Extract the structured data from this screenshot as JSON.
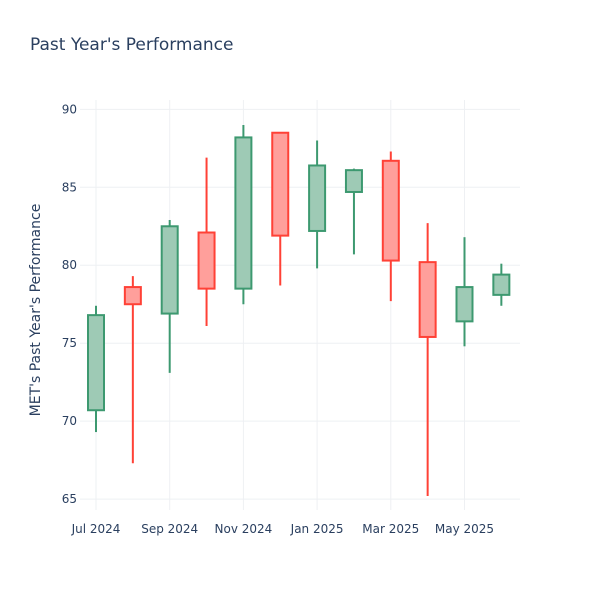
{
  "chart_data": {
    "type": "candlestick",
    "title": "Past Year's Performance",
    "xlabel": "",
    "ylabel": "MET's Past Year's Performance",
    "ylim": [
      64.3,
      90.6
    ],
    "yticks": [
      65,
      70,
      75,
      80,
      85,
      90
    ],
    "xticks": [
      {
        "label": "Jul 2024",
        "month": 0
      },
      {
        "label": "Sep 2024",
        "month": 2
      },
      {
        "label": "Nov 2024",
        "month": 4
      },
      {
        "label": "Jan 2025",
        "month": 6
      },
      {
        "label": "Mar 2025",
        "month": 8
      },
      {
        "label": "May 2025",
        "month": 10
      }
    ],
    "grid": true,
    "colors": {
      "increasing": "#3d9970",
      "increasing_fill": "#9ecab5",
      "decreasing": "#ff4136",
      "decreasing_fill": "#ff9f9b"
    },
    "candles": [
      {
        "date": "2024-07",
        "open": 70.7,
        "high": 77.4,
        "low": 69.3,
        "close": 76.8
      },
      {
        "date": "2024-08",
        "open": 78.6,
        "high": 79.3,
        "low": 67.3,
        "close": 77.5
      },
      {
        "date": "2024-09",
        "open": 76.9,
        "high": 82.9,
        "low": 73.1,
        "close": 82.5
      },
      {
        "date": "2024-10",
        "open": 82.1,
        "high": 86.9,
        "low": 76.1,
        "close": 78.5
      },
      {
        "date": "2024-11",
        "open": 78.5,
        "high": 89.0,
        "low": 77.5,
        "close": 88.2
      },
      {
        "date": "2024-12",
        "open": 88.5,
        "high": 88.5,
        "low": 78.7,
        "close": 81.9
      },
      {
        "date": "2025-01",
        "open": 82.2,
        "high": 88.0,
        "low": 79.8,
        "close": 86.4
      },
      {
        "date": "2025-02",
        "open": 84.7,
        "high": 86.2,
        "low": 80.7,
        "close": 86.1
      },
      {
        "date": "2025-03",
        "open": 86.7,
        "high": 87.3,
        "low": 77.7,
        "close": 80.3
      },
      {
        "date": "2025-04",
        "open": 80.2,
        "high": 82.7,
        "low": 65.2,
        "close": 75.4
      },
      {
        "date": "2025-05",
        "open": 76.4,
        "high": 81.8,
        "low": 74.8,
        "close": 78.6
      },
      {
        "date": "2025-06",
        "open": 78.1,
        "high": 80.1,
        "low": 77.4,
        "close": 79.4
      }
    ]
  }
}
